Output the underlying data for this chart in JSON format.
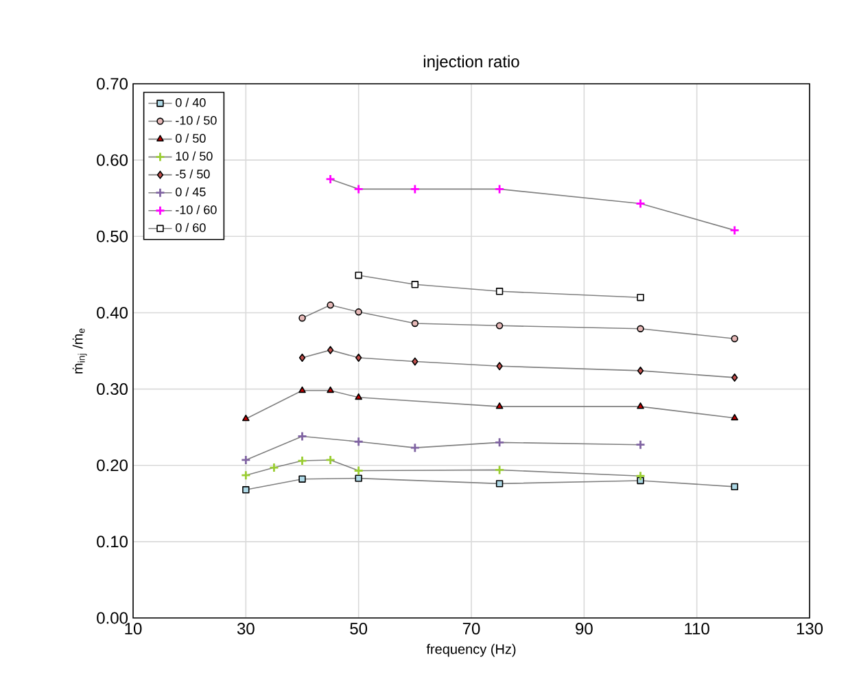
{
  "chart_data": {
    "type": "line",
    "title": "injection ratio",
    "xlabel": "frequency (Hz)",
    "ylabel": "ṁ$_{inj}$ /ṁ$_{e}$",
    "x": [
      30,
      35,
      40,
      45,
      50,
      60,
      75,
      100,
      116.7
    ],
    "series": [
      {
        "name": "0 / 40",
        "color": "#add8e6",
        "marker": "square",
        "values": [
          0.168,
          null,
          0.182,
          null,
          0.183,
          null,
          0.176,
          0.18,
          0.172
        ]
      },
      {
        "name": "-10 / 50",
        "color": "#e6b8b7",
        "marker": "circle",
        "values": [
          null,
          null,
          0.393,
          0.41,
          0.401,
          0.386,
          0.383,
          0.379,
          0.366
        ]
      },
      {
        "name": "0 / 50",
        "color": "#c00000",
        "marker": "triangle",
        "values": [
          0.261,
          null,
          0.298,
          0.298,
          0.289,
          null,
          0.277,
          0.277,
          0.262
        ]
      },
      {
        "name": "10 / 50",
        "color": "#9acd32",
        "marker": "cross",
        "values": [
          0.187,
          0.197,
          0.206,
          0.207,
          0.193,
          null,
          0.194,
          0.186,
          null
        ]
      },
      {
        "name": "-5 / 50",
        "color": "#c0504d",
        "marker": "diamond",
        "values": [
          null,
          null,
          0.341,
          0.351,
          0.341,
          0.336,
          0.33,
          0.324,
          0.315
        ]
      },
      {
        "name": "0 / 45",
        "color": "#8064a2",
        "marker": "cross",
        "values": [
          0.207,
          null,
          0.238,
          null,
          0.231,
          0.223,
          0.23,
          0.227,
          null
        ]
      },
      {
        "name": "-10 / 60",
        "color": "#ff00ff",
        "marker": "cross",
        "values": [
          null,
          null,
          null,
          0.575,
          0.562,
          0.562,
          0.562,
          0.543,
          0.508
        ]
      },
      {
        "name": "0 / 60",
        "color": "#ffffff",
        "marker": "square",
        "values": [
          null,
          null,
          null,
          null,
          0.449,
          0.437,
          0.428,
          0.42,
          null
        ]
      }
    ],
    "xlim": [
      10,
      130
    ],
    "xticks": [
      10,
      30,
      50,
      70,
      90,
      110,
      130
    ],
    "ylim": [
      0,
      0.7
    ],
    "yticks": [
      {
        "value": 0,
        "label": "0.00"
      },
      {
        "value": 0.1,
        "label": "0.10"
      },
      {
        "value": 0.2,
        "label": "0.20"
      },
      {
        "value": 0.3,
        "label": "0.30"
      },
      {
        "value": 0.4,
        "label": "0.40"
      },
      {
        "value": 0.5,
        "label": "0.50"
      },
      {
        "value": 0.6,
        "label": "0.60"
      },
      {
        "value": 0.7,
        "label": "0.70"
      }
    ],
    "grid": true,
    "legend": "top left",
    "line_style": "solid"
  }
}
